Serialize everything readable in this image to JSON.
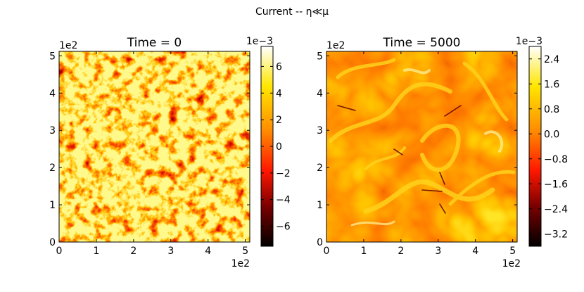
{
  "figure": {
    "suptitle": "Current -- η≪μ"
  },
  "chart_data": [
    {
      "type": "heatmap",
      "title": "Time = 0",
      "x_ticks": [
        "0",
        "1",
        "2",
        "3",
        "4",
        "5"
      ],
      "y_ticks": [
        "0",
        "1",
        "2",
        "3",
        "4",
        "5"
      ],
      "x_offset": "1e2",
      "y_offset": "1e2",
      "xlim": [
        0,
        5.12
      ],
      "ylim": [
        0,
        5.12
      ],
      "colormap": "hot",
      "colorbar": {
        "offset": "1e−3",
        "range": [
          -7.5,
          7.5
        ],
        "ticks": [
          "−6",
          "−4",
          "−2",
          "0",
          "2",
          "4",
          "6"
        ],
        "tick_values": [
          -6,
          -4,
          -2,
          0,
          2,
          4,
          6
        ]
      },
      "field": "fine-grained random turbulence",
      "colors": [
        "#000000",
        "#b00000",
        "#ff2a00",
        "#ff9400",
        "#ffe100",
        "#ffffff"
      ]
    },
    {
      "type": "heatmap",
      "title": "Time = 5000",
      "x_ticks": [
        "0",
        "1",
        "2",
        "3",
        "4",
        "5"
      ],
      "y_ticks": [
        "0",
        "1",
        "2",
        "3",
        "4",
        "5"
      ],
      "x_offset": "1e2",
      "y_offset": "1e2",
      "xlim": [
        0,
        5.12
      ],
      "ylim": [
        0,
        5.12
      ],
      "colormap": "hot",
      "colorbar": {
        "offset": "1e−3",
        "range": [
          -3.6,
          2.8
        ],
        "ticks": [
          "−3.2",
          "−2.4",
          "−1.6",
          "−0.8",
          "0.0",
          "0.8",
          "1.6",
          "2.4"
        ],
        "tick_values": [
          -3.2,
          -2.4,
          -1.6,
          -0.8,
          0.0,
          0.8,
          1.6,
          2.4
        ]
      },
      "field": "smooth large-scale swirls with thin current sheets",
      "colors": [
        "#000000",
        "#b00000",
        "#ff2a00",
        "#ff9400",
        "#ffe100",
        "#ffffff"
      ]
    }
  ]
}
